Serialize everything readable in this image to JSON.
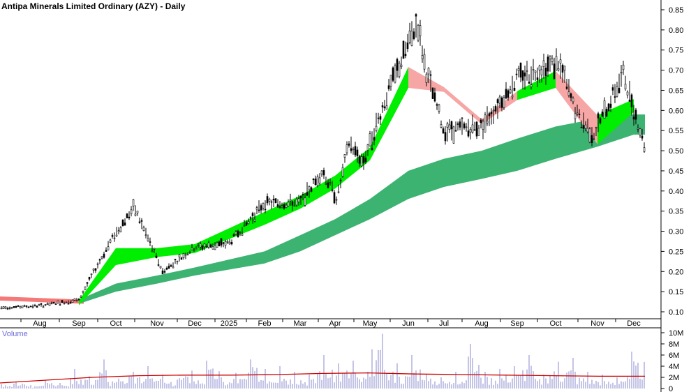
{
  "title": "Antipa Minerals Limited Ordinary (AZY) - Daily",
  "colors": {
    "background": "#ffffff",
    "price_bar": "#000000",
    "short_band_up": "#00ee00",
    "short_band_down": "#ff6a1a",
    "short_band_faded": "#f7a6a6",
    "long_band": "#3cb371",
    "long_band_early": "#f47a7a",
    "volume_bar": "#8888cc",
    "volume_avg": "#cc0000",
    "axis": "#000000"
  },
  "chart_data": [
    {
      "type": "ohlc",
      "title": "Antipa Minerals Limited Ordinary (AZY) - Daily",
      "x_ticks": [
        "Aug",
        "Sep",
        "Oct",
        "Nov",
        "Dec",
        "2025",
        "Feb",
        "Mar",
        "Apr",
        "May",
        "Jun",
        "Jul",
        "Aug",
        "Sep",
        "Oct",
        "Nov",
        "Dec"
      ],
      "y_ticks": [
        "0.85",
        "0.80",
        "0.75",
        "0.70",
        "0.65",
        "0.60",
        "0.55",
        "0.50",
        "0.45",
        "0.40",
        "0.35",
        "0.30",
        "0.25",
        "0.20",
        "0.15",
        "0.10"
      ],
      "ylim": [
        0.08,
        0.87
      ],
      "grid": false,
      "price_points": [
        {
          "x": "Jul",
          "y": 0.11
        },
        {
          "x": "Aug",
          "y": 0.115
        },
        {
          "x": "Sep",
          "y": 0.13
        },
        {
          "x": "Oct",
          "y": 0.28
        },
        {
          "x": "Oct",
          "y": 0.36
        },
        {
          "x": "Nov",
          "y": 0.2
        },
        {
          "x": "Dec",
          "y": 0.26
        },
        {
          "x": "2025",
          "y": 0.27
        },
        {
          "x": "Feb",
          "y": 0.37
        },
        {
          "x": "Mar",
          "y": 0.37
        },
        {
          "x": "Mar",
          "y": 0.45
        },
        {
          "x": "Apr",
          "y": 0.38
        },
        {
          "x": "Apr",
          "y": 0.52
        },
        {
          "x": "May",
          "y": 0.47
        },
        {
          "x": "May",
          "y": 0.64
        },
        {
          "x": "Jun",
          "y": 0.82
        },
        {
          "x": "Jun",
          "y": 0.7
        },
        {
          "x": "Jul",
          "y": 0.55
        },
        {
          "x": "Aug",
          "y": 0.56
        },
        {
          "x": "Sep",
          "y": 0.68
        },
        {
          "x": "Oct",
          "y": 0.72
        },
        {
          "x": "Oct",
          "y": 0.59
        },
        {
          "x": "Nov",
          "y": 0.54
        },
        {
          "x": "Dec",
          "y": 0.69
        },
        {
          "x": "Dec",
          "y": 0.51
        }
      ],
      "short_band": [
        {
          "x": "Sep",
          "lo": 0.12,
          "hi": 0.12
        },
        {
          "x": "Oct",
          "lo": 0.22,
          "hi": 0.25
        },
        {
          "x": "Nov",
          "lo": 0.24,
          "hi": 0.25
        },
        {
          "x": "Dec",
          "lo": 0.25,
          "hi": 0.26
        },
        {
          "x": "Feb",
          "lo": 0.32,
          "hi": 0.34
        },
        {
          "x": "Mar",
          "lo": 0.36,
          "hi": 0.38
        },
        {
          "x": "Apr",
          "lo": 0.41,
          "hi": 0.43
        },
        {
          "x": "May",
          "lo": 0.48,
          "hi": 0.5
        },
        {
          "x": "Jun",
          "lo": 0.66,
          "hi": 0.7
        },
        {
          "x": "Jul",
          "lo": 0.65,
          "hi": 0.65
        },
        {
          "x": "Aug",
          "lo": 0.57,
          "hi": 0.57
        },
        {
          "x": "Sep",
          "lo": 0.63,
          "hi": 0.64
        },
        {
          "x": "Oct",
          "lo": 0.66,
          "hi": 0.69
        },
        {
          "x": "Nov",
          "lo": 0.52,
          "hi": 0.58
        },
        {
          "x": "Dec",
          "lo": 0.6,
          "hi": 0.62
        }
      ],
      "long_band": [
        {
          "x": "Sep",
          "lo": 0.12,
          "hi": 0.13
        },
        {
          "x": "Oct",
          "lo": 0.15,
          "hi": 0.17
        },
        {
          "x": "Nov",
          "lo": 0.17,
          "hi": 0.19
        },
        {
          "x": "Dec",
          "lo": 0.19,
          "hi": 0.21
        },
        {
          "x": "Feb",
          "lo": 0.22,
          "hi": 0.25
        },
        {
          "x": "Mar",
          "lo": 0.25,
          "hi": 0.29
        },
        {
          "x": "Apr",
          "lo": 0.29,
          "hi": 0.33
        },
        {
          "x": "May",
          "lo": 0.33,
          "hi": 0.38
        },
        {
          "x": "Jun",
          "lo": 0.38,
          "hi": 0.45
        },
        {
          "x": "Jul",
          "lo": 0.41,
          "hi": 0.48
        },
        {
          "x": "Aug",
          "lo": 0.43,
          "hi": 0.5
        },
        {
          "x": "Sep",
          "lo": 0.45,
          "hi": 0.53
        },
        {
          "x": "Oct",
          "lo": 0.48,
          "hi": 0.56
        },
        {
          "x": "Nov",
          "lo": 0.51,
          "hi": 0.58
        },
        {
          "x": "Dec",
          "lo": 0.54,
          "hi": 0.59
        }
      ]
    },
    {
      "type": "bar",
      "title": "Volume",
      "y_ticks": [
        "10M",
        "8M",
        "6M",
        "4M",
        "2M",
        "0"
      ],
      "ylim": [
        0,
        10
      ],
      "average_line": [
        1.0,
        1.5,
        2.0,
        2.3,
        2.4,
        2.4,
        2.5,
        2.7,
        2.8,
        2.6,
        2.5,
        2.4,
        2.3,
        2.2,
        2.2
      ],
      "values": [
        0.8,
        1.2,
        0.6,
        1.5,
        1.0,
        3.5,
        2.2,
        5.2,
        1.8,
        3.0,
        4.0,
        2.5,
        1.6,
        3.2,
        2.4,
        5.0,
        2.0,
        2.8,
        5.2,
        3.5,
        4.0,
        3.0,
        2.5,
        6.0,
        4.5,
        5.0,
        3.0,
        9.8,
        4.5,
        3.5,
        6.0,
        2.5,
        2.0,
        3.0,
        8.0,
        3.0,
        3.5,
        4.0,
        6.0,
        2.5,
        4.8,
        5.5,
        3.0,
        2.5,
        2.0,
        3.0,
        6.6
      ]
    }
  ]
}
